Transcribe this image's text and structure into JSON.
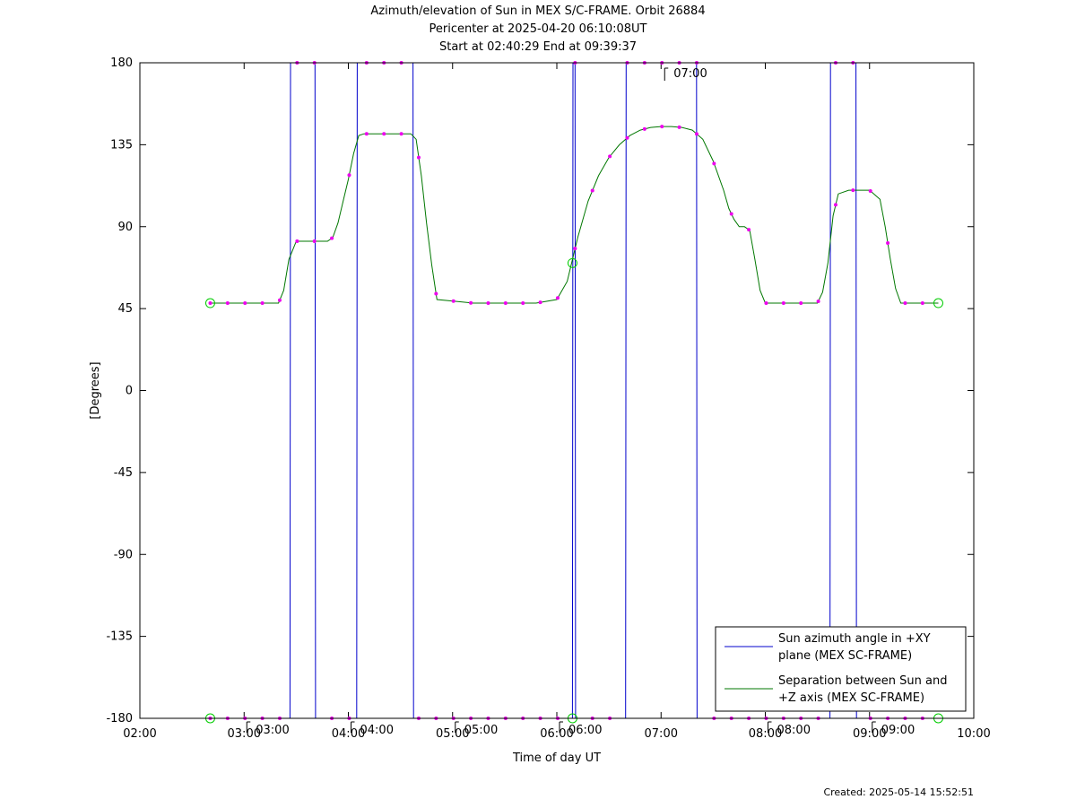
{
  "chart_data": {
    "type": "line",
    "title": [
      "Azimuth/elevation of Sun in MEX S/C-FRAME.  Orbit 26884",
      "Pericenter at 2025-04-20 06:10:08UT",
      "Start at 02:40:29 End at 09:39:37"
    ],
    "xlabel": "Time of day UT",
    "ylabel": "[Degrees]",
    "xlim": [
      2.0,
      10.0
    ],
    "ylim": [
      -180,
      180
    ],
    "x_ticks": [
      2,
      3,
      4,
      5,
      6,
      7,
      8,
      9,
      10
    ],
    "x_tick_labels": [
      "02:00",
      "03:00",
      "04:00",
      "05:00",
      "06:00",
      "07:00",
      "08:00",
      "09:00",
      "10:00"
    ],
    "y_ticks": [
      -180,
      -135,
      -90,
      -45,
      0,
      45,
      90,
      135,
      180
    ],
    "y_tick_labels": [
      "-180",
      "-135",
      "-90",
      "-45",
      "0",
      "45",
      "90",
      "135",
      "180"
    ],
    "created": "Created: 2025-05-14 15:52:51",
    "legend_position": "bottom-right",
    "hour_markers": [
      {
        "x": 3.0,
        "y": -180,
        "label": "03:00"
      },
      {
        "x": 4.0,
        "y": -180,
        "label": "04:00"
      },
      {
        "x": 5.0,
        "y": -180,
        "label": "05:00"
      },
      {
        "x": 6.0,
        "y": -180,
        "label": "06:00"
      },
      {
        "x": 7.0,
        "y": 180,
        "label": "07:00"
      },
      {
        "x": 8.0,
        "y": -180,
        "label": "08:00"
      },
      {
        "x": 9.0,
        "y": -180,
        "label": "09:00"
      }
    ],
    "series": [
      {
        "name": "Sun azimuth angle in +XY plane (MEX SC-FRAME)",
        "legend_lines": [
          "Sun azimuth angle in +XY",
          "plane (MEX SC-FRAME)"
        ],
        "color": "#0000cc",
        "x": [
          2.675,
          3.44,
          3.445,
          3.68,
          3.685,
          4.08,
          4.085,
          4.62,
          4.625,
          6.15,
          6.155,
          6.175,
          6.18,
          6.66,
          6.665,
          7.34,
          7.345,
          8.62,
          8.625,
          8.87,
          8.875,
          9.66
        ],
        "y": [
          -180,
          -180,
          180,
          180,
          -180,
          -180,
          180,
          180,
          -180,
          -180,
          180,
          180,
          -180,
          -180,
          180,
          180,
          -180,
          -180,
          180,
          180,
          -180,
          -180
        ]
      },
      {
        "name": "Separation between Sun and +Z axis (MEX SC-FRAME)",
        "legend_lines": [
          "Separation between Sun and",
          "+Z axis (MEX SC-FRAME)"
        ],
        "color": "#007700",
        "x": [
          2.675,
          3.33,
          3.38,
          3.43,
          3.5,
          3.8,
          3.85,
          3.9,
          3.95,
          4.0,
          4.05,
          4.1,
          4.15,
          4.6,
          4.65,
          4.7,
          4.75,
          4.8,
          4.85,
          5.2,
          5.5,
          5.8,
          6.0,
          6.1,
          6.2,
          6.3,
          6.4,
          6.5,
          6.6,
          6.7,
          6.8,
          6.9,
          7.0,
          7.1,
          7.2,
          7.3,
          7.4,
          7.5,
          7.6,
          7.65,
          7.7,
          7.75,
          7.8,
          7.85,
          7.9,
          7.95,
          8.0,
          8.5,
          8.55,
          8.6,
          8.65,
          8.7,
          8.8,
          8.9,
          9.0,
          9.1,
          9.15,
          9.2,
          9.25,
          9.3,
          9.4,
          9.66
        ],
        "y": [
          48,
          48,
          55,
          72,
          82,
          82,
          84,
          92,
          104,
          116,
          130,
          140,
          141,
          141,
          138,
          118,
          92,
          69,
          50,
          48,
          48,
          48,
          50,
          60,
          84,
          104,
          118,
          128,
          135,
          140,
          143,
          144.5,
          145,
          145,
          144.5,
          143,
          138,
          126,
          110,
          100,
          94,
          90,
          90,
          88,
          72,
          55,
          48,
          48,
          54,
          70,
          96,
          108,
          110,
          110,
          110,
          105,
          90,
          72,
          56,
          48,
          48,
          48
        ]
      }
    ]
  }
}
